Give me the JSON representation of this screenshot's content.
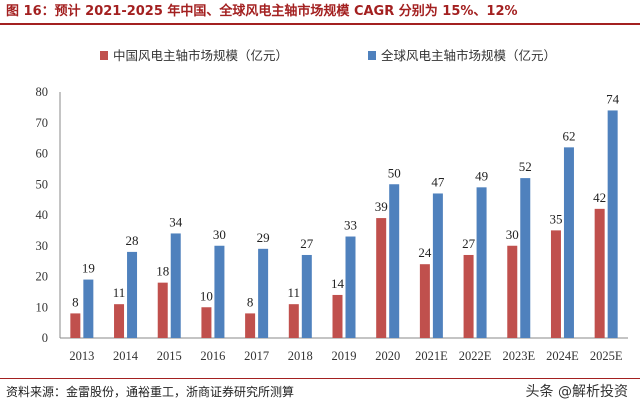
{
  "title": "图 16：预计 2021-2025 年中国、全球风电主轴市场规模 CAGR 分别为 15%、12%",
  "source": "资料来源：金雷股份，通裕重工，浙商证券研究所测算",
  "watermark": "头条 @解析投资",
  "colors": {
    "china": "#c0504d",
    "global": "#4f81bd",
    "title": "#a32020"
  },
  "chart_data": {
    "type": "bar",
    "categories": [
      "2013",
      "2014",
      "2015",
      "2016",
      "2017",
      "2018",
      "2019",
      "2020",
      "2021E",
      "2022E",
      "2023E",
      "2024E",
      "2025E"
    ],
    "series": [
      {
        "name": "中国风电主轴市场规模（亿元）",
        "color": "#c0504d",
        "values": [
          8,
          11,
          18,
          10,
          8,
          11,
          14,
          39,
          24,
          27,
          30,
          35,
          42
        ]
      },
      {
        "name": "全球风电主轴市场规模（亿元）",
        "color": "#4f81bd",
        "values": [
          19,
          28,
          34,
          30,
          29,
          27,
          33,
          50,
          47,
          49,
          52,
          62,
          74
        ]
      }
    ],
    "ylim": [
      0,
      80
    ],
    "yticks": [
      0,
      10,
      20,
      30,
      40,
      50,
      60,
      70,
      80
    ],
    "grid": false,
    "legend": "top-left",
    "data_labels": true
  }
}
